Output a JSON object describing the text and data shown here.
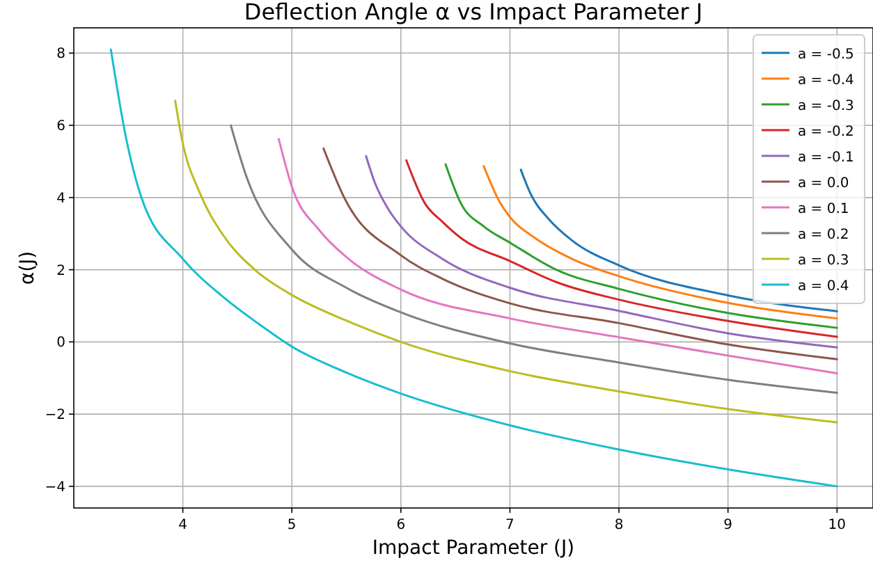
{
  "chart_data": {
    "type": "line",
    "title": "Deflection Angle α vs Impact Parameter J",
    "xlabel": "Impact Parameter (J)",
    "ylabel": "α(J)",
    "xlim": [
      3.0,
      10.33
    ],
    "ylim": [
      -4.6,
      8.7
    ],
    "xticks": [
      4,
      5,
      6,
      7,
      8,
      9,
      10
    ],
    "yticks": [
      -4,
      -2,
      0,
      2,
      4,
      6,
      8
    ],
    "grid": true,
    "legend": "top right",
    "marker": "none",
    "line_style": "solid",
    "series": [
      {
        "name": "a = -0.5",
        "color": "#1f77b4",
        "x": [
          7.1,
          7.19,
          7.36,
          7.57,
          8,
          9,
          10
        ],
        "values": [
          4.77,
          4.1,
          3.39,
          2.81,
          2.12,
          1.29,
          0.85
        ]
      },
      {
        "name": "a = -0.4",
        "color": "#ff7f0e",
        "x": [
          6.76,
          6.9,
          7,
          7.23,
          7.57,
          8,
          9,
          10
        ],
        "values": [
          4.87,
          3.91,
          3.46,
          2.88,
          2.3,
          1.82,
          1.08,
          0.65
        ]
      },
      {
        "name": "a = -0.3",
        "color": "#2ca02c",
        "x": [
          6.41,
          6.55,
          6.76,
          7,
          7.44,
          8,
          9,
          10
        ],
        "values": [
          4.92,
          3.84,
          3.2,
          2.75,
          1.98,
          1.47,
          0.8,
          0.39
        ]
      },
      {
        "name": "a = -0.2",
        "color": "#d62728",
        "x": [
          6.05,
          6.22,
          6.38,
          6.55,
          7,
          7.44,
          8,
          9,
          10
        ],
        "values": [
          5.03,
          3.84,
          3.33,
          2.88,
          2.24,
          1.64,
          1.17,
          0.58,
          0.14
        ]
      },
      {
        "name": "a = -0.1",
        "color": "#9467bd",
        "x": [
          5.68,
          5.76,
          5.89,
          6,
          6.38,
          7,
          8,
          9,
          10
        ],
        "values": [
          5.15,
          4.42,
          3.65,
          3.2,
          2.3,
          1.5,
          0.86,
          0.24,
          -0.15
        ]
      },
      {
        "name": "a = 0.0",
        "color": "#8c564b",
        "x": [
          5.29,
          5.48,
          6,
          6.38,
          7,
          8,
          9,
          10
        ],
        "values": [
          5.36,
          4.0,
          2.4,
          1.75,
          1.07,
          0.52,
          -0.07,
          -0.48
        ]
      },
      {
        "name": "a = 0.1",
        "color": "#e377c2",
        "x": [
          4.88,
          5,
          5.25,
          5.5,
          6,
          7,
          8,
          9,
          10
        ],
        "values": [
          5.62,
          4.3,
          3.1,
          2.35,
          1.45,
          0.65,
          0.13,
          -0.38,
          -0.87
        ]
      },
      {
        "name": "a = 0.2",
        "color": "#7f7f7f",
        "x": [
          4.44,
          4.58,
          5,
          5.5,
          6,
          7,
          8,
          9,
          10
        ],
        "values": [
          6.0,
          4.61,
          2.56,
          1.5,
          0.82,
          -0.04,
          -0.57,
          -1.05,
          -1.41
        ]
      },
      {
        "name": "a = 0.3",
        "color": "#bcbd22",
        "x": [
          3.93,
          3.99,
          4.16,
          4.36,
          4.66,
          5,
          5.5,
          6,
          7,
          8,
          9,
          10
        ],
        "values": [
          6.68,
          5.64,
          4.1,
          3.0,
          2.0,
          1.3,
          0.59,
          0.0,
          -0.81,
          -1.37,
          -1.86,
          -2.23
        ]
      },
      {
        "name": "a = 0.4",
        "color": "#17becf",
        "x": [
          3.34,
          3.48,
          3.62,
          4,
          4.36,
          4.7,
          5,
          5.5,
          6,
          7,
          8,
          9,
          10
        ],
        "values": [
          8.1,
          5.64,
          4.0,
          2.3,
          1.27,
          0.49,
          -0.13,
          -0.85,
          -1.43,
          -2.31,
          -2.98,
          -3.53,
          -4.0
        ]
      }
    ]
  }
}
